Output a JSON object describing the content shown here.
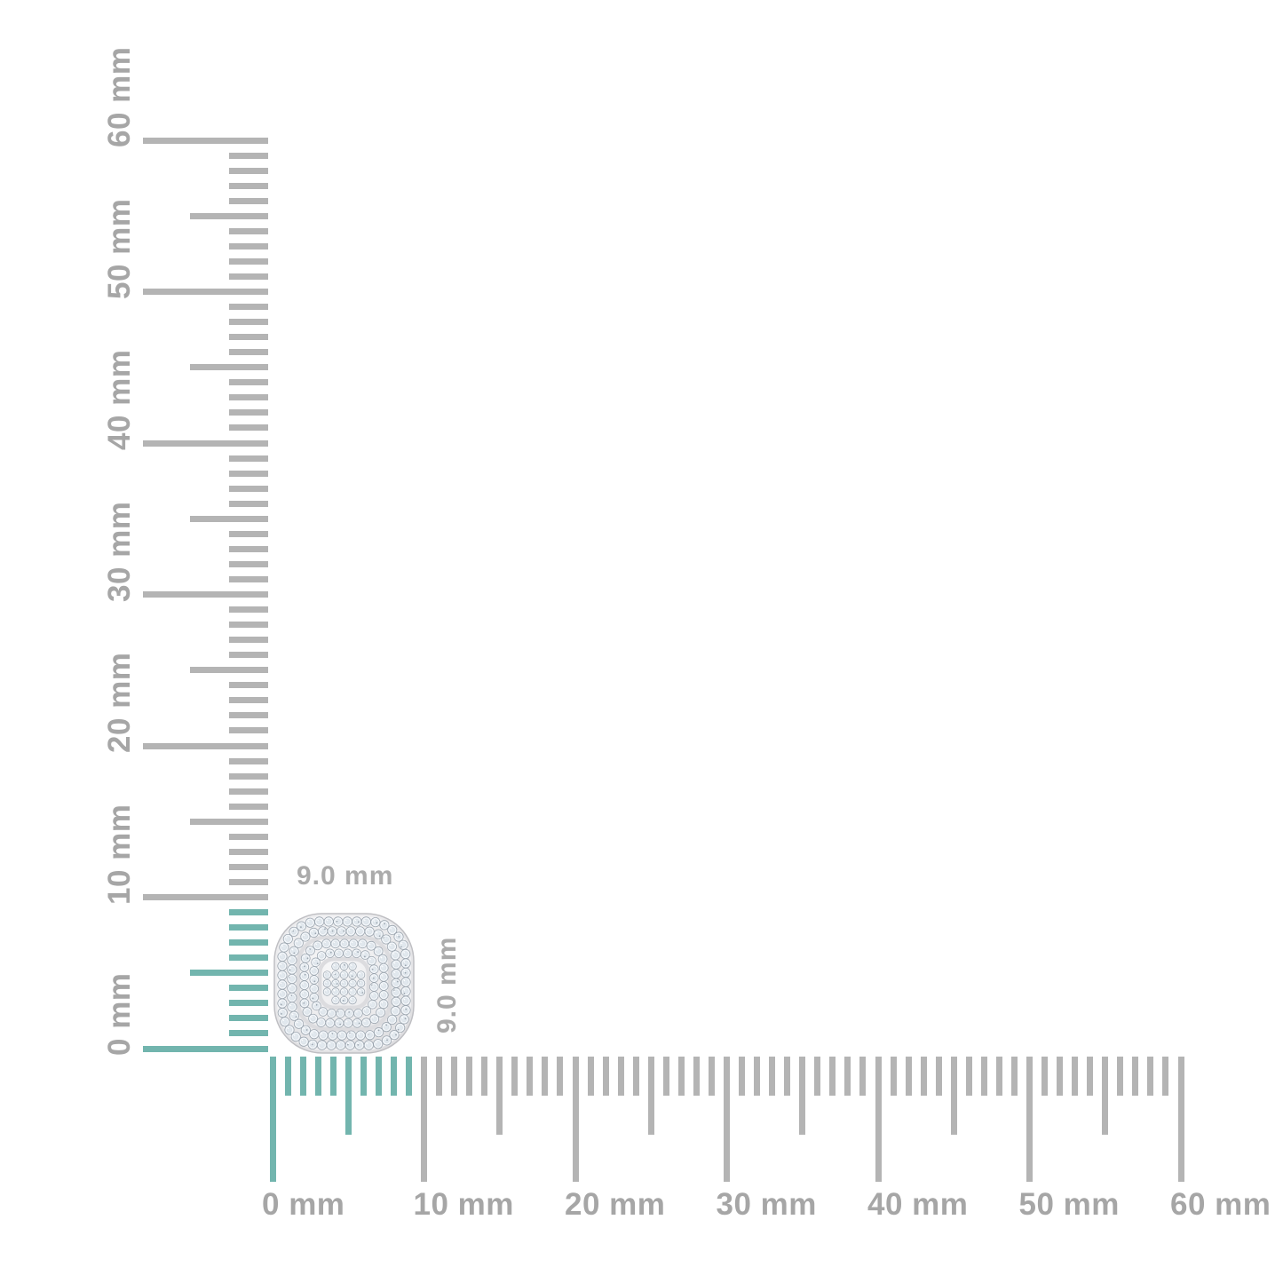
{
  "page": {
    "type": "product-measurement-diagram",
    "background": "#ffffff"
  },
  "rulers": {
    "unit": "mm",
    "range_mm": [
      0,
      60
    ],
    "major_step_mm": 10,
    "medium_step_mm": 5,
    "minor_step_mm": 1,
    "highlight_extent_mm": 9,
    "colors": {
      "tick": "#b4b4b4",
      "tick_highlight": "#72b5ae",
      "label": "#a6a6a6"
    },
    "vertical": {
      "labels": [
        "0 mm",
        "10 mm",
        "20 mm",
        "30 mm",
        "40 mm",
        "50 mm",
        "60 mm"
      ]
    },
    "horizontal": {
      "labels": [
        "0 mm",
        "10 mm",
        "20 mm",
        "30 mm",
        "40 mm",
        "50 mm",
        "60 mm"
      ]
    }
  },
  "item": {
    "description": "cushion-shaped pave diamond cluster",
    "width_label": "9.0 mm",
    "height_label": "9.0 mm",
    "label_color": "#ababab",
    "colors": {
      "metal_light": "#f7f7f8",
      "metal": "#eaeaec",
      "metal_dark": "#d8d8db",
      "metal_edge": "#bfbfc3",
      "groove": "#dcdcdf",
      "gem_fill": "#f1f5f9",
      "gem_stroke": "#97a1ab",
      "gem_facet": "#e1e8ee",
      "gem_facet_edge": "#ccd4db",
      "speck": "#8a95a0"
    }
  }
}
